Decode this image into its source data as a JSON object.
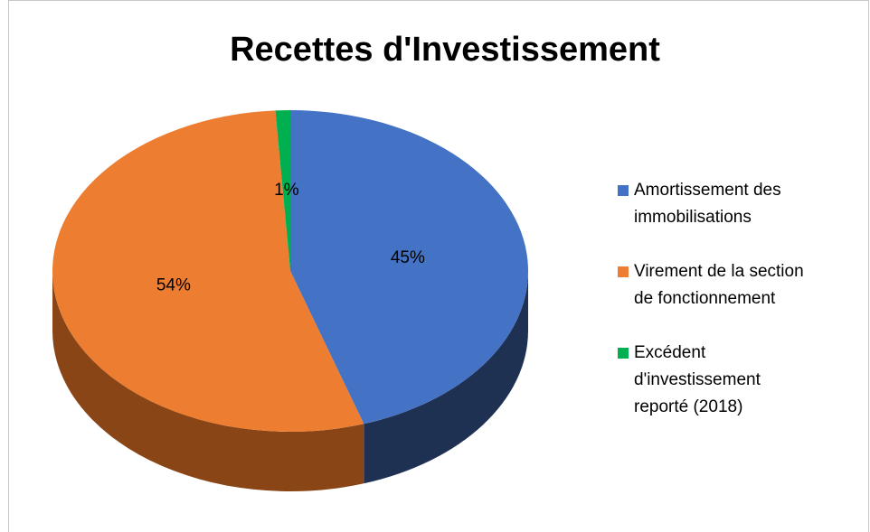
{
  "chart_data": {
    "type": "pie",
    "title": "Recettes d'Investissement",
    "categories": [
      "Amortissement des immobilisations",
      "Virement de la section de fonctionnement",
      "Excédent d'investissement reporté (2018)"
    ],
    "values": [
      45,
      54,
      1
    ],
    "value_labels": [
      "45%",
      "54%",
      "1%"
    ],
    "colors": [
      "#4472c4",
      "#ed7d31",
      "#00b050"
    ],
    "side_colors": [
      "#1f3153",
      "#8a4516",
      "#005f2a"
    ],
    "legend": "right"
  }
}
